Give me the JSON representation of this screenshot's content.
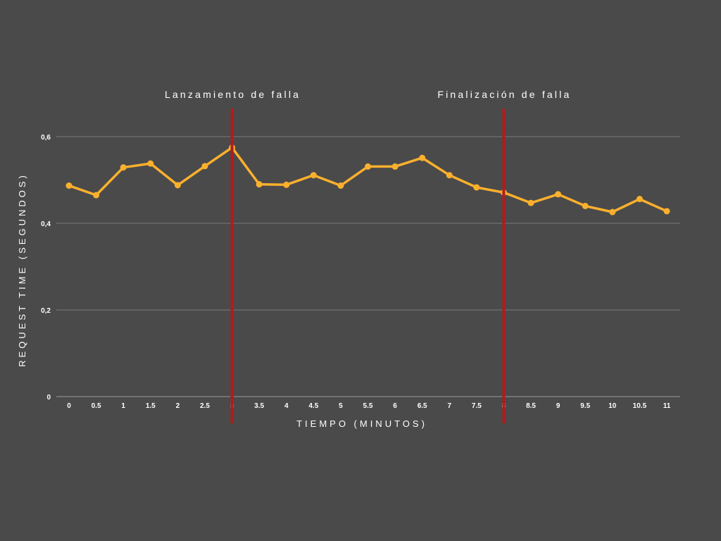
{
  "chart_data": {
    "type": "line",
    "xlabel": "TIEMPO (MINUTOS)",
    "ylabel": "REQUEST TIME (SEGUNDOS)",
    "ylim": [
      0,
      0.6
    ],
    "y_ticks": [
      {
        "value": 0,
        "label": "0"
      },
      {
        "value": 0.2,
        "label": "0,2"
      },
      {
        "value": 0.4,
        "label": "0,4"
      },
      {
        "value": 0.6,
        "label": "0,6"
      }
    ],
    "x_ticks": [
      "0",
      "0.5",
      "1",
      "1.5",
      "2",
      "2.5",
      "3",
      "3.5",
      "4",
      "4.5",
      "5",
      "5.5",
      "6",
      "6.5",
      "7",
      "7.5",
      "8",
      "8.5",
      "9",
      "9.5",
      "10",
      "10.5",
      "11"
    ],
    "grid": true,
    "series": [
      {
        "color": "#fbb02d",
        "x": [
          0,
          0.5,
          1,
          1.5,
          2,
          2.5,
          3,
          3.5,
          4,
          4.5,
          5,
          5.5,
          6,
          6.5,
          7,
          7.5,
          8,
          8.5,
          9,
          9.5,
          10,
          10.5,
          11
        ],
        "values": [
          0.487,
          0.465,
          0.529,
          0.538,
          0.488,
          0.532,
          0.575,
          0.49,
          0.489,
          0.511,
          0.487,
          0.531,
          0.531,
          0.551,
          0.511,
          0.483,
          0.471,
          0.447,
          0.467,
          0.44,
          0.426,
          0.456,
          0.428
        ]
      }
    ],
    "annotations": [
      {
        "x": 3,
        "label": "Lanzamiento de falla",
        "color": "#b01c1c"
      },
      {
        "x": 8,
        "label": "Finalización de falla",
        "color": "#b01c1c"
      }
    ]
  }
}
